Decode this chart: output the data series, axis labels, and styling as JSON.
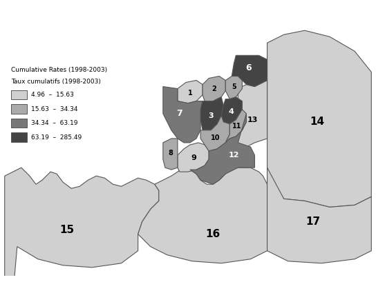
{
  "title_line1": "Cumulative Rates (1998-2003)",
  "title_line2": "Taux cumulatifs (1998-2003)",
  "legend_items": [
    {
      "label": "4.96  –  15.63",
      "color": "#d0d0d0"
    },
    {
      "label": "15.63  –  34.34",
      "color": "#aaaaaa"
    },
    {
      "label": "34.34  –  63.19",
      "color": "#777777"
    },
    {
      "label": "63.19  –  285.49",
      "color": "#444444"
    }
  ],
  "colors": {
    "light": "#d0d0d0",
    "medium_light": "#aaaaaa",
    "medium_dark": "#777777",
    "dark": "#444444"
  },
  "edge_color": "#555555",
  "background": "#ffffff"
}
